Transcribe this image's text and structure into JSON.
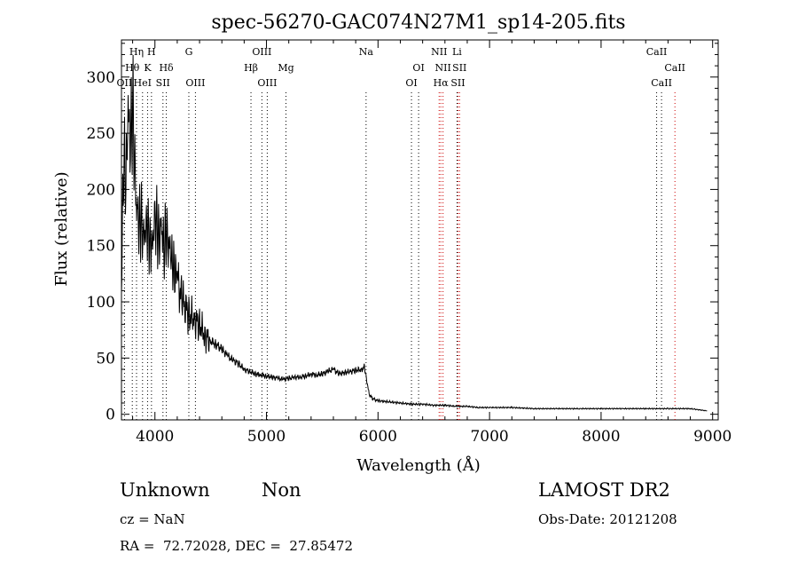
{
  "chart_data": {
    "type": "line",
    "title": "spec-56270-GAC074N27M1_sp14-205.fits",
    "xlabel": "Wavelength (Å)",
    "ylabel": "Flux (relative)",
    "xlim": [
      3700,
      9050
    ],
    "ylim": [
      -5,
      333
    ],
    "x_ticks": [
      4000,
      5000,
      6000,
      7000,
      8000,
      9000
    ],
    "y_ticks": [
      0,
      50,
      100,
      150,
      200,
      250,
      300
    ],
    "grid": false,
    "series": [
      {
        "x": [
          3700,
          3720,
          3740,
          3760,
          3780,
          3800,
          3820,
          3840,
          3860,
          3880,
          3900,
          3920,
          3940,
          3960,
          3980,
          4000,
          4020,
          4040,
          4060,
          4080,
          4100,
          4120,
          4140,
          4160,
          4180,
          4200,
          4250,
          4300,
          4350,
          4400,
          4450,
          4500,
          4550,
          4600,
          4650,
          4700,
          4750,
          4800,
          4850,
          4900,
          4950,
          5000,
          5050,
          5100,
          5150,
          5200,
          5250,
          5300,
          5350,
          5400,
          5450,
          5500,
          5550,
          5600,
          5650,
          5700,
          5750,
          5800,
          5850,
          5880,
          5900,
          5920,
          5950,
          6000,
          6100,
          6200,
          6300,
          6400,
          6500,
          6600,
          6700,
          6800,
          6900,
          7000,
          7200,
          7400,
          7600,
          7800,
          8000,
          8200,
          8400,
          8600,
          8800,
          8950
        ],
        "y": [
          110,
          230,
          200,
          260,
          240,
          275,
          210,
          180,
          175,
          170,
          160,
          175,
          165,
          150,
          160,
          180,
          165,
          160,
          170,
          140,
          165,
          150,
          140,
          130,
          125,
          120,
          100,
          90,
          85,
          80,
          70,
          65,
          62,
          58,
          52,
          48,
          45,
          40,
          38,
          36,
          35,
          34,
          33,
          32,
          31,
          32,
          33,
          33,
          34,
          36,
          35,
          36,
          38,
          40,
          36,
          37,
          38,
          39,
          40,
          42,
          30,
          18,
          14,
          12,
          11,
          10,
          9,
          9,
          8,
          8,
          7,
          7,
          6,
          6,
          6,
          5,
          5,
          5,
          5,
          5,
          5,
          5,
          5,
          3
        ]
      }
    ],
    "line_markers": [
      {
        "label": "OII",
        "x": 3727,
        "color": "#000000",
        "row": 2
      },
      {
        "label": "Hθ",
        "x": 3797,
        "color": "#000000",
        "row": 1
      },
      {
        "label": "Hη",
        "x": 3835,
        "color": "#000000",
        "row": 0
      },
      {
        "label": "HeI",
        "x": 3889,
        "color": "#000000",
        "row": 2
      },
      {
        "label": "K",
        "x": 3934,
        "color": "#000000",
        "row": 1
      },
      {
        "label": "H",
        "x": 3969,
        "color": "#000000",
        "row": 0
      },
      {
        "label": "SII",
        "x": 4072,
        "color": "#000000",
        "row": 2
      },
      {
        "label": "Hδ",
        "x": 4102,
        "color": "#000000",
        "row": 1
      },
      {
        "label": "G",
        "x": 4304,
        "color": "#000000",
        "row": 0
      },
      {
        "label": "OIII",
        "x": 4363,
        "color": "#000000",
        "row": 2
      },
      {
        "label": "Hβ",
        "x": 4861,
        "color": "#000000",
        "row": 1
      },
      {
        "label": "OIII",
        "x": 4959,
        "color": "#000000",
        "row": 0
      },
      {
        "label": "OIII",
        "x": 5007,
        "color": "#000000",
        "row": 2
      },
      {
        "label": "Mg",
        "x": 5175,
        "color": "#000000",
        "row": 1
      },
      {
        "label": "Na",
        "x": 5893,
        "color": "#000000",
        "row": 0
      },
      {
        "label": "OI",
        "x": 6300,
        "color": "#000000",
        "row": 2
      },
      {
        "label": "OI",
        "x": 6364,
        "color": "#000000",
        "row": 1
      },
      {
        "label": "NII",
        "x": 6548,
        "color": "#cc0000",
        "row": 0
      },
      {
        "label": "Hα",
        "x": 6563,
        "color": "#cc0000",
        "row": 2
      },
      {
        "label": "NII",
        "x": 6583,
        "color": "#cc0000",
        "row": 1
      },
      {
        "label": "Li",
        "x": 6708,
        "color": "#000000",
        "row": 0
      },
      {
        "label": "SII",
        "x": 6717,
        "color": "#cc0000",
        "row": 2
      },
      {
        "label": "SII",
        "x": 6731,
        "color": "#cc0000",
        "row": 1
      },
      {
        "label": "CaII",
        "x": 8498,
        "color": "#000000",
        "row": 0
      },
      {
        "label": "CaII",
        "x": 8542,
        "color": "#000000",
        "row": 2
      },
      {
        "label": "CaII",
        "x": 8662,
        "color": "#cc0000",
        "row": 1
      }
    ]
  },
  "info": {
    "class": "Unknown",
    "subclass": "Non",
    "survey": "LAMOST DR2",
    "cz": "cz = NaN",
    "obs_date": "Obs-Date: 20121208",
    "coords": "RA =  72.72028, DEC =  27.85472"
  }
}
